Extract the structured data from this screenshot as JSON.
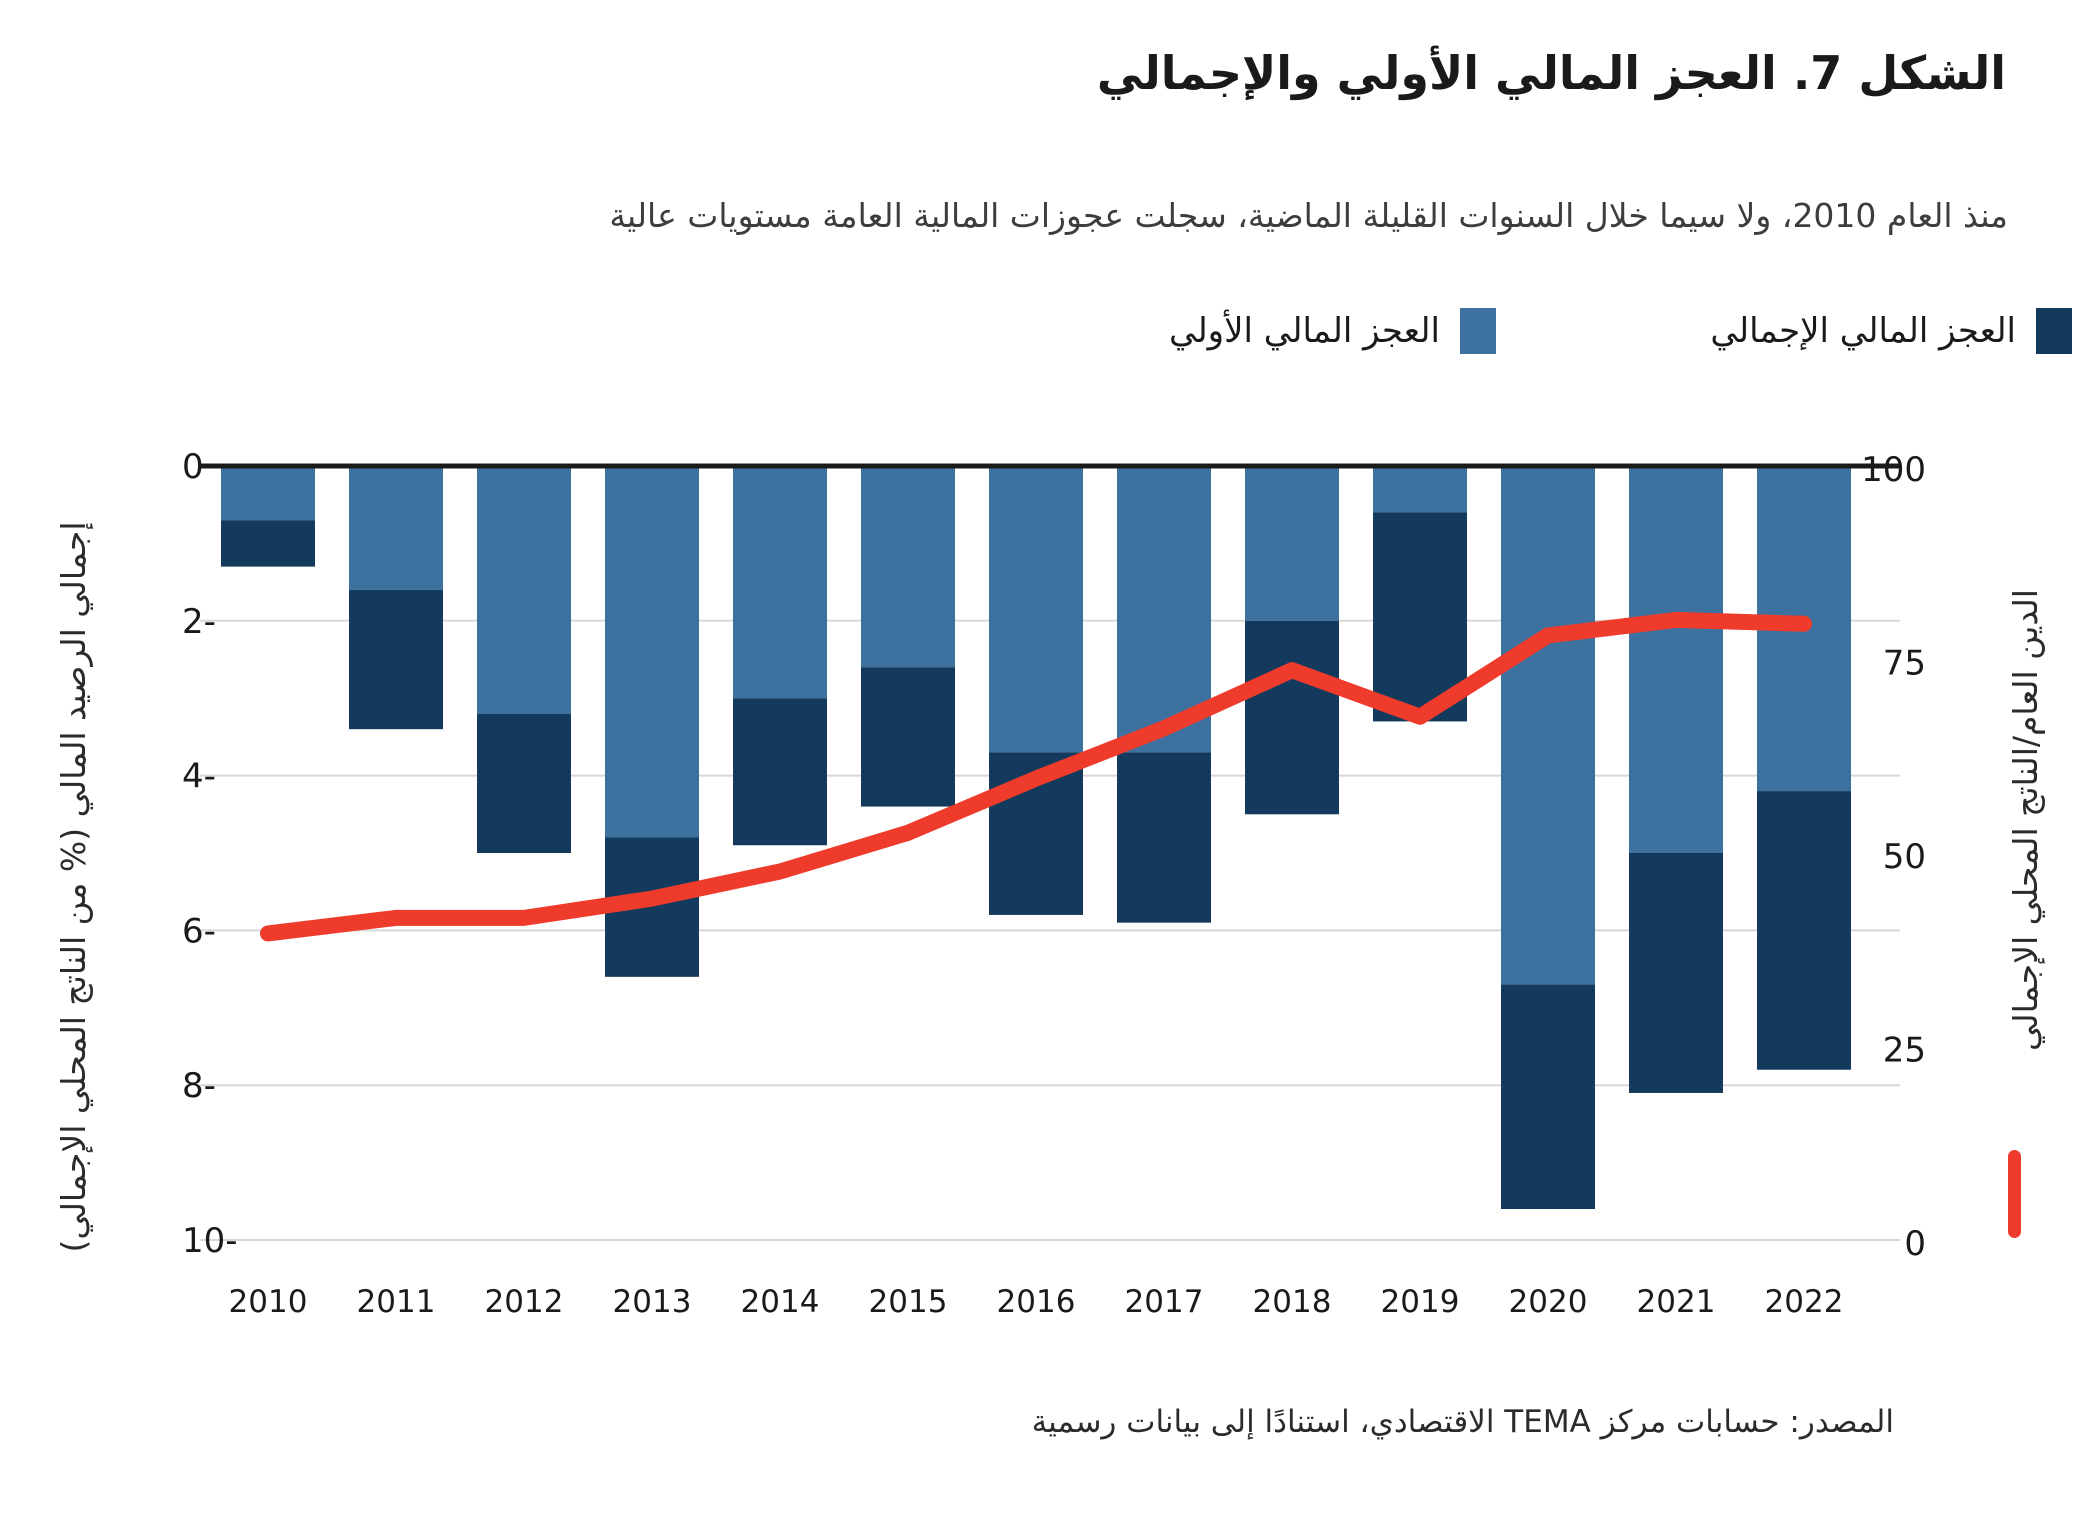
{
  "title": "الشكل 7. العجز المالي الأولي والإجمالي",
  "subtitle": "منذ العام 2010، ولا سيما خلال السنوات القليلة الماضية، سجلت عجوزات المالية العامة مستويات عالية",
  "legend": {
    "overall": {
      "label": "العجز المالي الإجمالي",
      "color": "#133a5c"
    },
    "primary": {
      "label": "العجز المالي الأولي",
      "color": "#3d72a0"
    }
  },
  "source": "المصدر: حسابات مركز TEMA الاقتصادي، استنادًا إلى بيانات رسمية",
  "chart_data": {
    "type": "bar",
    "subtype": "stacked-bars-with-line",
    "categories": [
      2010,
      2011,
      2012,
      2013,
      2014,
      2015,
      2016,
      2017,
      2018,
      2019,
      2020,
      2021,
      2022
    ],
    "series": [
      {
        "name": "العجز المالي الأولي",
        "role": "primary-deficit-light-segment",
        "type": "bar",
        "axis": "left",
        "color": "#3d72a0",
        "values": [
          -0.7,
          -1.6,
          -3.2,
          -4.8,
          -3.0,
          -2.6,
          -3.7,
          -3.7,
          -2.0,
          -0.6,
          -6.7,
          -5.0,
          -4.2
        ]
      },
      {
        "name": "العجز المالي الإجمالي",
        "role": "overall-deficit-bar-total",
        "type": "bar",
        "axis": "left",
        "color": "#133a5c",
        "values": [
          -1.3,
          -3.4,
          -5.0,
          -6.6,
          -4.9,
          -4.4,
          -5.8,
          -5.9,
          -4.5,
          -3.3,
          -9.6,
          -8.1,
          -7.8
        ]
      },
      {
        "name": "الدين العام/الناتج المحلي الإجمالي",
        "role": "debt-to-gdp-line",
        "type": "line",
        "axis": "right",
        "color": "#ee3b2c",
        "values": [
          40,
          42,
          42,
          44.5,
          48,
          53,
          60,
          66.5,
          74,
          68,
          78.5,
          80.5,
          80
        ]
      }
    ],
    "left_axis": {
      "label": "إجمالي الرصيد المالي (% من الناتج المحلي الإجمالي)",
      "ticks": [
        0,
        -2,
        -4,
        -6,
        -8,
        -10
      ],
      "range": [
        -10.5,
        0.3
      ]
    },
    "right_axis": {
      "label": "الدين العام/الناتج المحلي الإجمالي",
      "ticks": [
        100,
        75,
        50,
        25,
        0
      ],
      "range": [
        0,
        103
      ]
    },
    "grid": true,
    "legend_position": "top-right",
    "colors": {
      "gridline": "#d8d8d8",
      "zero_line": "#1a1a1a",
      "tick_text": "#1a1a1a"
    }
  }
}
